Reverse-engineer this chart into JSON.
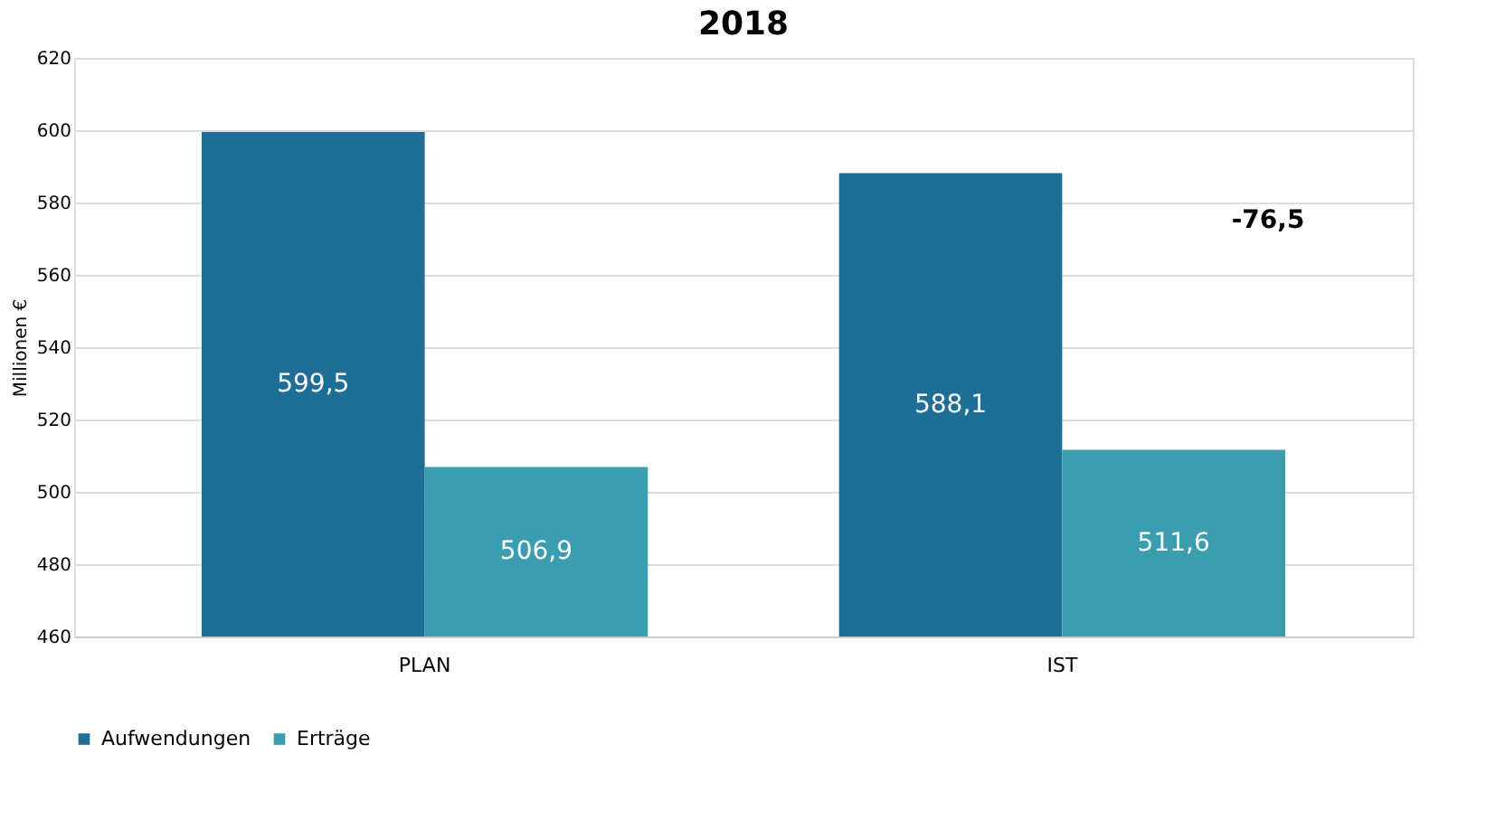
{
  "chart_data": {
    "type": "bar",
    "title": "2018",
    "ylabel": "Millionen €",
    "categories": [
      "PLAN",
      "IST"
    ],
    "series": [
      {
        "name": "Aufwendungen",
        "color": "#1f6e98",
        "values": [
          599.5,
          588.1
        ],
        "value_labels": [
          "599,5",
          "588,1"
        ]
      },
      {
        "name": "Erträge",
        "color": "#3a9db0",
        "values": [
          506.9,
          511.6
        ],
        "value_labels": [
          "506,9",
          "511,6"
        ]
      }
    ],
    "ylim": [
      460,
      620
    ],
    "yticks": [
      460,
      480,
      500,
      520,
      540,
      560,
      580,
      600,
      620
    ],
    "grid": "y",
    "legend": "bottom",
    "annotations": [
      "-76,5"
    ]
  }
}
